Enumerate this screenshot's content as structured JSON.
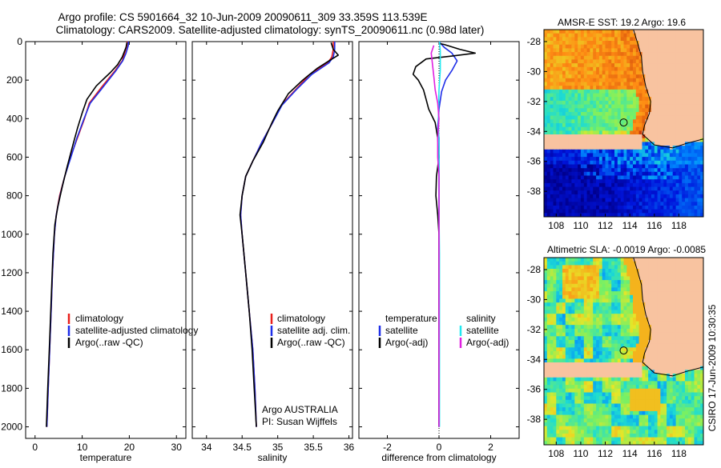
{
  "title_line1": "Argo profile: CS 5901664_32 10-Jun-2009 20090611_309 33.359S 113.539E",
  "title_line2": "Climatology: CARS2009. Satellite-adjusted climatology: synTS_20090611.nc (0.98d later)",
  "credit": "CSIRO 17-Jun-2009 10:30:35",
  "colors": {
    "red": "#e8201c",
    "blue": "#1e2ee8",
    "black": "#000000",
    "cyan": "#22e8f0",
    "magenta": "#e020e0"
  },
  "chart_data": [
    {
      "type": "line",
      "xlabel": "temperature",
      "xlim": [
        -2,
        32
      ],
      "xticks": [
        0,
        10,
        20,
        30
      ],
      "ylim": [
        0,
        2060
      ],
      "yticks": [
        0,
        200,
        400,
        600,
        800,
        1000,
        1200,
        1400,
        1600,
        1800,
        2000
      ],
      "legend": [
        "climatology",
        "satellite-adjusted climatology",
        "Argo(..raw -QC)"
      ],
      "series": [
        {
          "name": "climatology",
          "color": "red",
          "points": [
            [
              19.5,
              0
            ],
            [
              19.5,
              20
            ],
            [
              19,
              60
            ],
            [
              18.5,
              100
            ],
            [
              17,
              150
            ],
            [
              14,
              240
            ],
            [
              11.5,
              320
            ],
            [
              10.5,
              400
            ],
            [
              9,
              500
            ],
            [
              7.5,
              600
            ],
            [
              6.3,
              700
            ],
            [
              5.2,
              800
            ],
            [
              4.5,
              900
            ],
            [
              4.1,
              1000
            ],
            [
              3.7,
              1200
            ],
            [
              3.4,
              1400
            ],
            [
              3.1,
              1600
            ],
            [
              2.8,
              1800
            ],
            [
              2.5,
              2000
            ]
          ]
        },
        {
          "name": "satellite-adjusted climatology",
          "color": "blue",
          "points": [
            [
              19.8,
              0
            ],
            [
              19.8,
              20
            ],
            [
              19.3,
              60
            ],
            [
              18.6,
              100
            ],
            [
              17.2,
              150
            ],
            [
              14.3,
              240
            ],
            [
              11.7,
              320
            ],
            [
              10.4,
              400
            ],
            [
              8.9,
              500
            ],
            [
              7.6,
              600
            ],
            [
              6.3,
              700
            ],
            [
              5.3,
              800
            ],
            [
              4.5,
              900
            ],
            [
              4.1,
              1000
            ],
            [
              3.7,
              1200
            ],
            [
              3.4,
              1400
            ],
            [
              3.1,
              1600
            ],
            [
              2.8,
              1800
            ],
            [
              2.5,
              2000
            ]
          ]
        },
        {
          "name": "Argo(..raw -QC)",
          "color": "black",
          "points": [
            [
              19.5,
              5
            ],
            [
              19.3,
              30
            ],
            [
              18.5,
              80
            ],
            [
              17.5,
              120
            ],
            [
              16,
              160
            ],
            [
              13,
              230
            ],
            [
              11,
              300
            ],
            [
              10,
              370
            ],
            [
              9,
              450
            ],
            [
              8,
              540
            ],
            [
              6.8,
              650
            ],
            [
              5.8,
              750
            ],
            [
              4.8,
              860
            ],
            [
              4.2,
              950
            ],
            [
              3.8,
              1100
            ],
            [
              3.4,
              1350
            ],
            [
              3.1,
              1550
            ],
            [
              2.7,
              1800
            ],
            [
              2.4,
              2000
            ]
          ]
        }
      ]
    },
    {
      "type": "line",
      "xlabel": "salinity",
      "xlim": [
        33.8,
        36.05
      ],
      "xticks": [
        34,
        34.5,
        35,
        35.5,
        36
      ],
      "xticklabels": [
        "34",
        "34.5",
        "35",
        "35.5",
        "36"
      ],
      "ylim": [
        0,
        2060
      ],
      "legend": [
        "climatology",
        "satellite adj. clim.",
        "Argo(..raw -QC)"
      ],
      "annotation": [
        "Argo AUSTRALIA",
        "PI: Susan Wijffels"
      ],
      "series": [
        {
          "name": "climatology",
          "color": "red",
          "points": [
            [
              35.78,
              0
            ],
            [
              35.78,
              40
            ],
            [
              35.76,
              80
            ],
            [
              35.7,
              110
            ],
            [
              35.45,
              170
            ],
            [
              35.25,
              250
            ],
            [
              35.05,
              330
            ],
            [
              34.93,
              420
            ],
            [
              34.78,
              520
            ],
            [
              34.65,
              620
            ],
            [
              34.55,
              700
            ],
            [
              34.5,
              800
            ],
            [
              34.48,
              900
            ],
            [
              34.5,
              1000
            ],
            [
              34.55,
              1200
            ],
            [
              34.6,
              1400
            ],
            [
              34.65,
              1600
            ],
            [
              34.68,
              1800
            ],
            [
              34.7,
              2000
            ]
          ]
        },
        {
          "name": "satellite adj. clim.",
          "color": "blue",
          "points": [
            [
              35.8,
              0
            ],
            [
              35.8,
              40
            ],
            [
              35.78,
              80
            ],
            [
              35.72,
              110
            ],
            [
              35.48,
              170
            ],
            [
              35.26,
              250
            ],
            [
              35.06,
              330
            ],
            [
              34.93,
              420
            ],
            [
              34.78,
              520
            ],
            [
              34.65,
              620
            ],
            [
              34.55,
              700
            ],
            [
              34.5,
              800
            ],
            [
              34.48,
              900
            ],
            [
              34.5,
              1000
            ],
            [
              34.55,
              1200
            ],
            [
              34.6,
              1400
            ],
            [
              34.65,
              1600
            ],
            [
              34.68,
              1800
            ],
            [
              34.7,
              2000
            ]
          ]
        },
        {
          "name": "Argo(..raw -QC)",
          "color": "black",
          "points": [
            [
              35.75,
              5
            ],
            [
              35.78,
              40
            ],
            [
              35.85,
              70
            ],
            [
              35.72,
              100
            ],
            [
              35.55,
              140
            ],
            [
              35.35,
              200
            ],
            [
              35.15,
              270
            ],
            [
              35.0,
              360
            ],
            [
              34.92,
              420
            ],
            [
              34.8,
              520
            ],
            [
              34.65,
              620
            ],
            [
              34.55,
              700
            ],
            [
              34.5,
              800
            ],
            [
              34.47,
              900
            ],
            [
              34.5,
              1000
            ],
            [
              34.55,
              1200
            ],
            [
              34.6,
              1400
            ],
            [
              34.64,
              1600
            ],
            [
              34.67,
              1800
            ],
            [
              34.7,
              2000
            ]
          ]
        }
      ]
    },
    {
      "type": "line",
      "xlabel": "difference from climatology",
      "xlim": [
        -3.1,
        3.1
      ],
      "xticks": [
        -2,
        0,
        2
      ],
      "ylim": [
        0,
        2060
      ],
      "legend_left": {
        "heading": "temperature",
        "items": [
          "satellite",
          "Argo(-adj)"
        ]
      },
      "legend_right": {
        "heading": "salinity",
        "items": [
          "satellite",
          "Argo(-adj)"
        ]
      },
      "series": [
        {
          "name": "temperature satellite",
          "color": "blue",
          "points": [
            [
              0,
              0
            ],
            [
              0.2,
              30
            ],
            [
              0.5,
              60
            ],
            [
              0.7,
              100
            ],
            [
              0.5,
              150
            ],
            [
              0.25,
              200
            ],
            [
              0.1,
              260
            ],
            [
              0,
              350
            ],
            [
              -0.05,
              450
            ],
            [
              0,
              500
            ],
            [
              0,
              600
            ],
            [
              0,
              700
            ],
            [
              0,
              800
            ],
            [
              0,
              1000
            ],
            [
              0,
              1500
            ],
            [
              0,
              2000
            ]
          ]
        },
        {
          "name": "temperature Argo(-adj)",
          "color": "black",
          "points": [
            [
              0,
              10
            ],
            [
              0.2,
              15
            ],
            [
              0.8,
              40
            ],
            [
              1.4,
              60
            ],
            [
              0.5,
              75
            ],
            [
              -0.5,
              90
            ],
            [
              -0.9,
              130
            ],
            [
              -1.0,
              170
            ],
            [
              -0.8,
              200
            ],
            [
              -0.6,
              250
            ],
            [
              -0.5,
              300
            ],
            [
              -0.4,
              350
            ],
            [
              -0.15,
              420
            ],
            [
              -0.05,
              500
            ],
            [
              0,
              600
            ],
            [
              -0.1,
              700
            ],
            [
              -0.12,
              800
            ],
            [
              -0.05,
              900
            ],
            [
              0,
              1000
            ],
            [
              0,
              1500
            ],
            [
              0,
              2000
            ]
          ]
        },
        {
          "name": "salinity satellite",
          "color": "cyan",
          "points": [
            [
              0.02,
              0
            ],
            [
              0.05,
              50
            ],
            [
              0.05,
              150
            ],
            [
              0.0,
              250
            ],
            [
              -0.02,
              350
            ],
            [
              -0.02,
              450
            ],
            [
              0.0,
              550
            ],
            [
              0.0,
              700
            ],
            [
              0.0,
              900
            ],
            [
              0.02,
              1100
            ],
            [
              0.02,
              1400
            ],
            [
              0.02,
              1700
            ],
            [
              0.02,
              2000
            ]
          ]
        },
        {
          "name": "salinity Argo(-adj)",
          "color": "magenta",
          "points": [
            [
              -0.2,
              20
            ],
            [
              -0.3,
              60
            ],
            [
              -0.25,
              120
            ],
            [
              -0.2,
              180
            ],
            [
              -0.15,
              250
            ],
            [
              -0.05,
              320
            ],
            [
              0,
              400
            ],
            [
              -0.05,
              500
            ],
            [
              -0.05,
              600
            ],
            [
              0,
              700
            ],
            [
              0,
              800
            ],
            [
              0,
              1000
            ],
            [
              0,
              1500
            ],
            [
              0,
              2000
            ]
          ]
        }
      ]
    },
    {
      "type": "heatmap",
      "title": "AMSR-E SST: 19.2 Argo: 19.6",
      "xlim": [
        107,
        120
      ],
      "ylim": [
        -39.7,
        -27.2
      ],
      "xticks": [
        108,
        110,
        112,
        114,
        116,
        118
      ],
      "yticks": [
        -28,
        -30,
        -32,
        -34,
        -36,
        -38
      ],
      "marker": {
        "lon": 113.5,
        "lat": -33.4
      }
    },
    {
      "type": "heatmap",
      "title": "Altimetric SLA: -0.0019 Argo: -0.0085",
      "xlim": [
        107,
        120
      ],
      "ylim": [
        -39.7,
        -27.2
      ],
      "xticks": [
        108,
        110,
        112,
        114,
        116,
        118
      ],
      "yticks": [
        -28,
        -30,
        -32,
        -34,
        -36,
        -38
      ],
      "marker": {
        "lon": 113.5,
        "lat": -33.4
      }
    }
  ]
}
